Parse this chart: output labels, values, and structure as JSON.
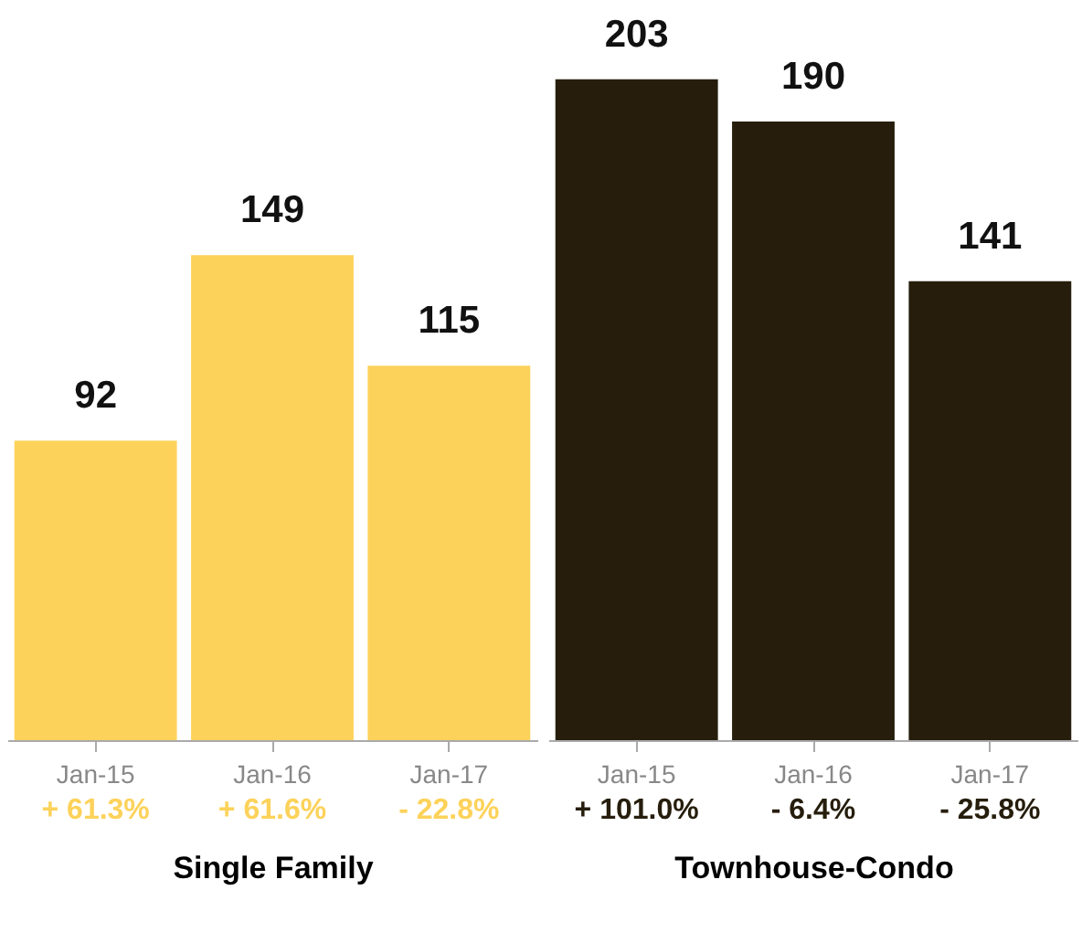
{
  "chart_data": [
    {
      "type": "bar",
      "xlabel": "Single Family",
      "categories": [
        "Jan-15",
        "Jan-16",
        "Jan-17"
      ],
      "values": [
        92,
        149,
        115
      ],
      "colors": [
        "#fdd25a",
        "#fdd25a",
        "#fdd25a"
      ],
      "data_labels": true,
      "annotations": [
        "+ 61.3%",
        "+ 61.6%",
        "- 22.8%"
      ]
    },
    {
      "type": "bar",
      "xlabel": "Townhouse-Condo",
      "categories": [
        "Jan-15",
        "Jan-16",
        "Jan-17"
      ],
      "values": [
        203,
        190,
        141
      ],
      "colors": [
        "#261d0c",
        "#261d0c",
        "#261d0c"
      ],
      "data_labels": true,
      "annotations": [
        "+ 101.0%",
        "- 6.4%",
        "- 25.8%"
      ]
    }
  ]
}
